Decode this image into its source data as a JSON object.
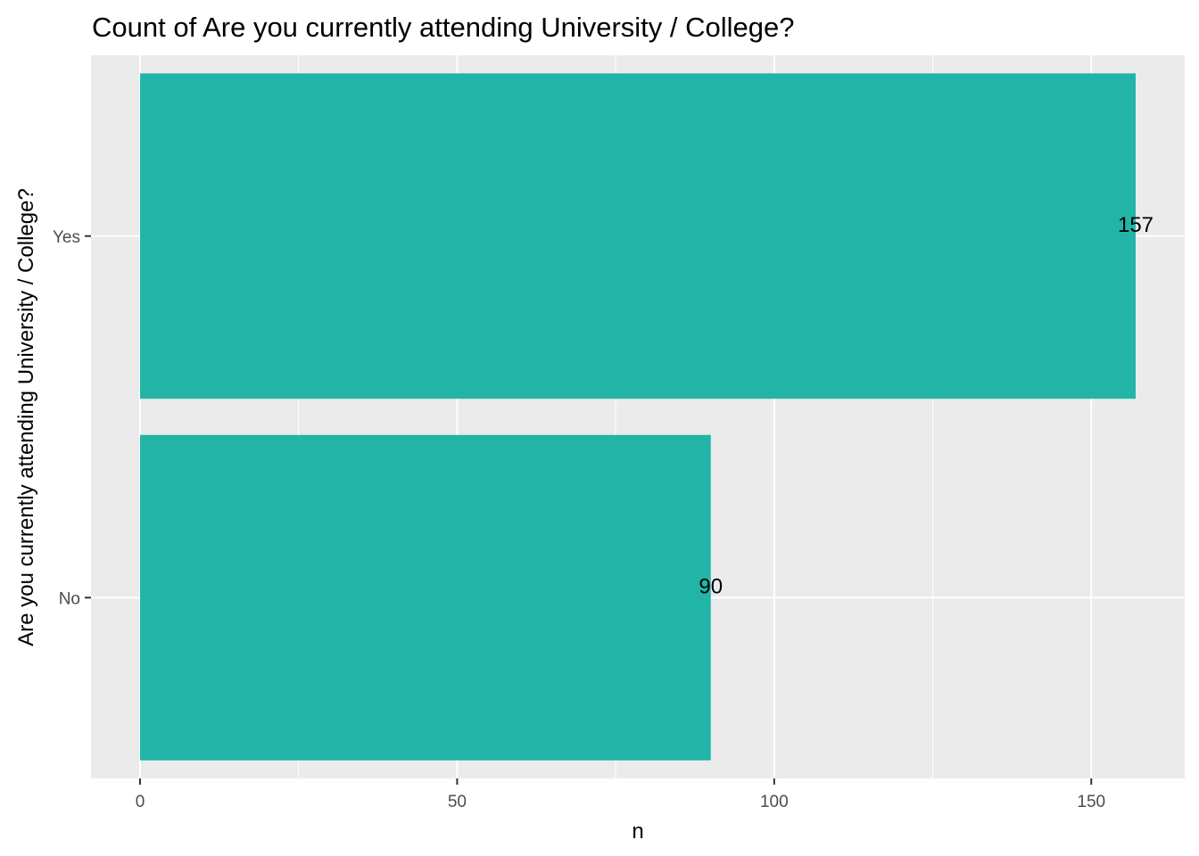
{
  "chart_data": {
    "type": "bar",
    "orientation": "horizontal",
    "title": "Count of Are you currently attending University / College?",
    "xlabel": "n",
    "ylabel": "Are you currently attending University / College?",
    "categories": [
      "No",
      "Yes"
    ],
    "values": [
      90,
      157
    ],
    "data_labels": [
      "90",
      "157"
    ],
    "xlim": [
      0,
      165
    ],
    "x_ticks": [
      0,
      50,
      100,
      150
    ],
    "x_minor_ticks": [
      25,
      75,
      125
    ],
    "grid": true,
    "legend": "none",
    "colors": {
      "bar": "#22b5a7",
      "panel": "#ebebeb",
      "grid": "#ffffff"
    }
  }
}
